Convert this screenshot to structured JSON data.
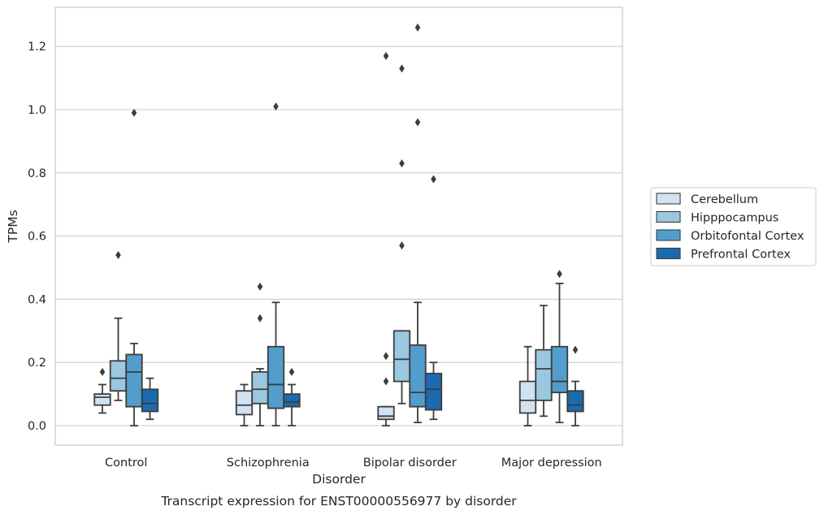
{
  "chart_data": {
    "type": "box",
    "caption": "Transcript expression for ENST00000556977 by disorder",
    "xlabel": "Disorder",
    "ylabel": "TPMs",
    "ylim": [
      -0.06,
      1.33
    ],
    "yticks": [
      0.0,
      0.2,
      0.4,
      0.6,
      0.8,
      1.0,
      1.2
    ],
    "ytick_labels": [
      "0.0",
      "0.2",
      "0.4",
      "0.6",
      "0.8",
      "1.0",
      "1.2"
    ],
    "grid": "horizontal",
    "legend_position": "right",
    "categories": [
      "Control",
      "Schizophrenia",
      "Bipolar disorder",
      "Major depression"
    ],
    "hue_order": [
      "Cerebellum",
      "Hipppocampus",
      "Orbitofontal Cortex",
      "Prefrontal Cortex"
    ],
    "colors": [
      "#d1e2f2",
      "#9ac8e0",
      "#529dcc",
      "#1c6aaf"
    ],
    "series": [
      {
        "name": "Cerebellum",
        "boxes": [
          {
            "whislo": 0.04,
            "q1": 0.065,
            "med": 0.09,
            "q3": 0.1,
            "whishi": 0.13,
            "fliers": [
              0.17
            ]
          },
          {
            "whislo": 0.0,
            "q1": 0.035,
            "med": 0.065,
            "q3": 0.11,
            "whishi": 0.13,
            "fliers": []
          },
          {
            "whislo": 0.0,
            "q1": 0.02,
            "med": 0.03,
            "q3": 0.06,
            "whishi": 0.06,
            "fliers": [
              0.14,
              0.22,
              1.17
            ]
          },
          {
            "whislo": 0.0,
            "q1": 0.04,
            "med": 0.08,
            "q3": 0.14,
            "whishi": 0.25,
            "fliers": []
          }
        ]
      },
      {
        "name": "Hipppocampus",
        "boxes": [
          {
            "whislo": 0.08,
            "q1": 0.11,
            "med": 0.15,
            "q3": 0.205,
            "whishi": 0.34,
            "fliers": [
              0.54
            ]
          },
          {
            "whislo": 0.0,
            "q1": 0.07,
            "med": 0.115,
            "q3": 0.17,
            "whishi": 0.18,
            "fliers": [
              0.34,
              0.44
            ]
          },
          {
            "whislo": 0.07,
            "q1": 0.14,
            "med": 0.21,
            "q3": 0.3,
            "whishi": 0.3,
            "fliers": [
              0.57,
              0.83,
              1.13
            ]
          },
          {
            "whislo": 0.03,
            "q1": 0.08,
            "med": 0.18,
            "q3": 0.24,
            "whishi": 0.38,
            "fliers": []
          }
        ]
      },
      {
        "name": "Orbitofontal Cortex",
        "boxes": [
          {
            "whislo": 0.0,
            "q1": 0.06,
            "med": 0.17,
            "q3": 0.225,
            "whishi": 0.26,
            "fliers": [
              0.99
            ]
          },
          {
            "whislo": 0.0,
            "q1": 0.055,
            "med": 0.13,
            "q3": 0.25,
            "whishi": 0.39,
            "fliers": [
              1.01
            ]
          },
          {
            "whislo": 0.01,
            "q1": 0.06,
            "med": 0.105,
            "q3": 0.255,
            "whishi": 0.39,
            "fliers": [
              0.96,
              1.26
            ]
          },
          {
            "whislo": 0.01,
            "q1": 0.105,
            "med": 0.14,
            "q3": 0.25,
            "whishi": 0.45,
            "fliers": [
              0.48
            ]
          }
        ]
      },
      {
        "name": "Prefrontal Cortex",
        "boxes": [
          {
            "whislo": 0.02,
            "q1": 0.045,
            "med": 0.07,
            "q3": 0.115,
            "whishi": 0.15,
            "fliers": []
          },
          {
            "whislo": 0.0,
            "q1": 0.06,
            "med": 0.075,
            "q3": 0.1,
            "whishi": 0.13,
            "fliers": [
              0.17
            ]
          },
          {
            "whislo": 0.02,
            "q1": 0.05,
            "med": 0.115,
            "q3": 0.165,
            "whishi": 0.2,
            "fliers": [
              0.78
            ]
          },
          {
            "whislo": 0.0,
            "q1": 0.045,
            "med": 0.065,
            "q3": 0.11,
            "whishi": 0.14,
            "fliers": [
              0.24
            ]
          }
        ]
      }
    ]
  }
}
